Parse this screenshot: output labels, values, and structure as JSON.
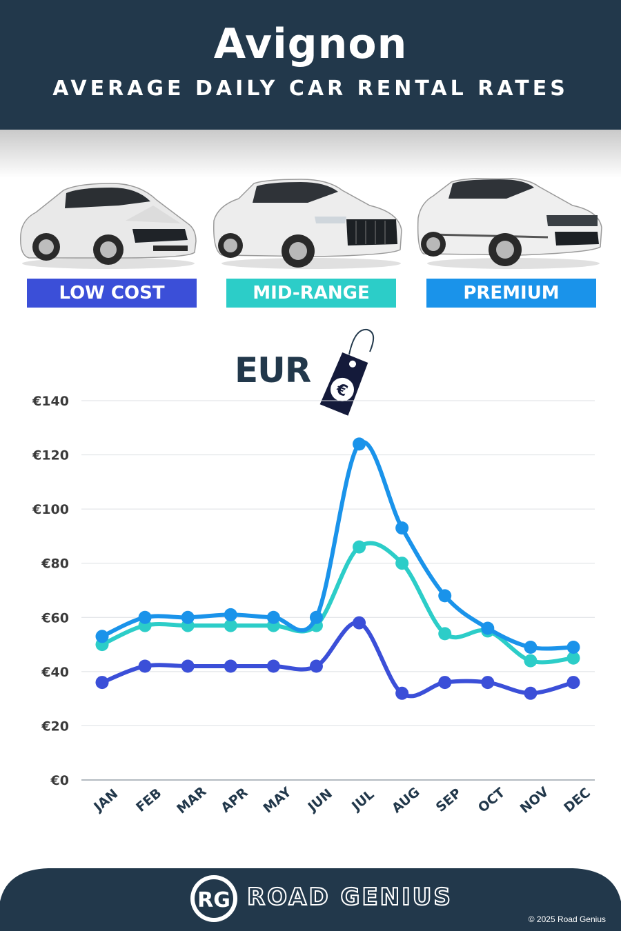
{
  "header": {
    "title": "Avignon",
    "subtitle": "AVERAGE DAILY CAR RENTAL RATES"
  },
  "cars": [
    {
      "label": "LOW COST",
      "color": "#3b4fd8"
    },
    {
      "label": "MID-RANGE",
      "color": "#2ccdc8"
    },
    {
      "label": "PREMIUM",
      "color": "#1a93ea"
    }
  ],
  "currency": {
    "label": "EUR",
    "symbol": "€"
  },
  "chart_data": {
    "type": "line",
    "categories": [
      "JAN",
      "FEB",
      "MAR",
      "APR",
      "MAY",
      "JUN",
      "JUL",
      "AUG",
      "SEP",
      "OCT",
      "NOV",
      "DEC"
    ],
    "yticks": [
      "€0",
      "€20",
      "€40",
      "€60",
      "€80",
      "€100",
      "€120",
      "€140"
    ],
    "ylim": [
      0,
      140
    ],
    "grid": true,
    "series": [
      {
        "name": "LOW COST",
        "color": "#3b4fd8",
        "values": [
          36,
          42,
          42,
          42,
          42,
          42,
          58,
          32,
          36,
          36,
          32,
          36
        ]
      },
      {
        "name": "MID-RANGE",
        "color": "#2ccdc8",
        "values": [
          50,
          57,
          57,
          57,
          57,
          57,
          86,
          80,
          54,
          55,
          44,
          45
        ]
      },
      {
        "name": "PREMIUM",
        "color": "#1a93ea",
        "values": [
          53,
          60,
          60,
          61,
          60,
          60,
          124,
          93,
          68,
          56,
          49,
          49
        ]
      }
    ]
  },
  "footer": {
    "logo_text": "RG",
    "brand": "ROAD GENIUS",
    "copyright": "© 2025 Road Genius"
  }
}
